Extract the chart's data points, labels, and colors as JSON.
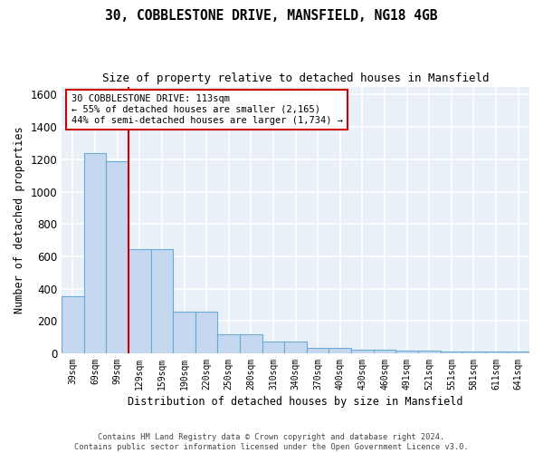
{
  "title": "30, COBBLESTONE DRIVE, MANSFIELD, NG18 4GB",
  "subtitle": "Size of property relative to detached houses in Mansfield",
  "xlabel": "Distribution of detached houses by size in Mansfield",
  "ylabel": "Number of detached properties",
  "categories": [
    "39sqm",
    "69sqm",
    "99sqm",
    "129sqm",
    "159sqm",
    "190sqm",
    "220sqm",
    "250sqm",
    "280sqm",
    "310sqm",
    "340sqm",
    "370sqm",
    "400sqm",
    "430sqm",
    "460sqm",
    "491sqm",
    "521sqm",
    "551sqm",
    "581sqm",
    "611sqm",
    "641sqm"
  ],
  "values": [
    355,
    1240,
    1190,
    645,
    645,
    260,
    260,
    120,
    120,
    75,
    75,
    35,
    35,
    20,
    20,
    15,
    15,
    10,
    10,
    10,
    10
  ],
  "bar_color": "#c5d8f0",
  "bar_edge_color": "#6aaad4",
  "fig_bg_color": "#ffffff",
  "axes_bg_color": "#eaf0f8",
  "grid_color": "#ffffff",
  "vline_x": 2.5,
  "vline_color": "#cc0000",
  "annotation_text": "30 COBBLESTONE DRIVE: 113sqm\n← 55% of detached houses are smaller (2,165)\n44% of semi-detached houses are larger (1,734) →",
  "annotation_box_facecolor": "#ffffff",
  "annotation_box_edgecolor": "#cc0000",
  "ylim": [
    0,
    1650
  ],
  "yticks": [
    0,
    200,
    400,
    600,
    800,
    1000,
    1200,
    1400,
    1600
  ],
  "footnote": "Contains HM Land Registry data © Crown copyright and database right 2024.\nContains public sector information licensed under the Open Government Licence v3.0."
}
